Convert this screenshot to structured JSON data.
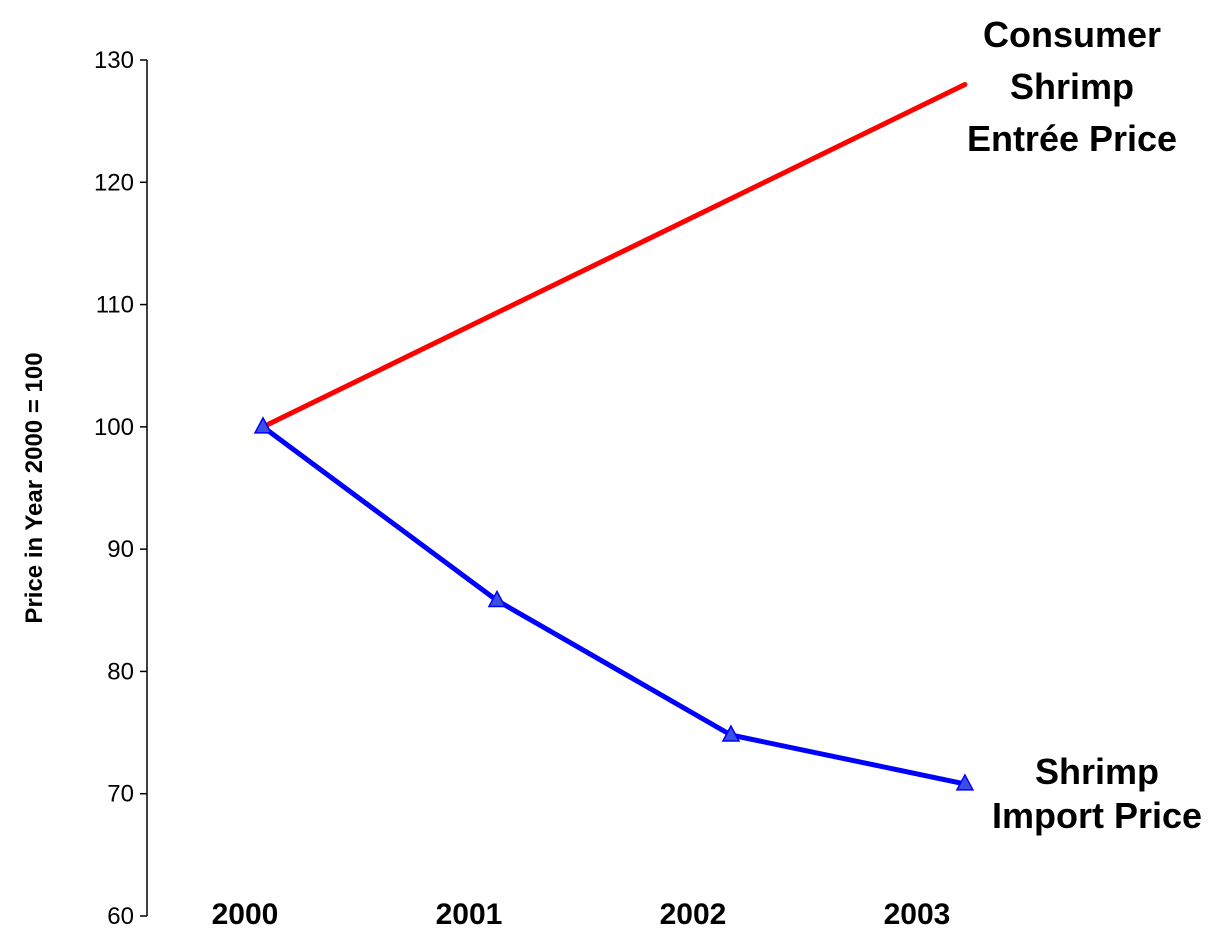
{
  "chart_data": {
    "type": "line",
    "title": "",
    "xlabel": "",
    "ylabel": "Price in Year 2000 = 100",
    "categories": [
      "2000",
      "2001",
      "2002",
      "2003"
    ],
    "ylim": [
      60,
      130
    ],
    "yticks": [
      60,
      70,
      80,
      90,
      100,
      110,
      120,
      130
    ],
    "grid": false,
    "legend": "none",
    "series": [
      {
        "name": "",
        "label_lines": [
          "Consumer",
          "Shrimp",
          "Entrée Price"
        ],
        "x": [
          0,
          3.3
        ],
        "values": [
          100,
          128
        ],
        "color": "#ff0000",
        "markers": false
      },
      {
        "name": "",
        "label_lines": [
          "Shrimp",
          "Import Price"
        ],
        "x": [
          0,
          1.1,
          2.2,
          3.3
        ],
        "values": [
          100,
          85.8,
          74.8,
          70.8
        ],
        "color": "#0000ff",
        "marker_color": "#3b4fe0",
        "markers": true
      }
    ]
  }
}
